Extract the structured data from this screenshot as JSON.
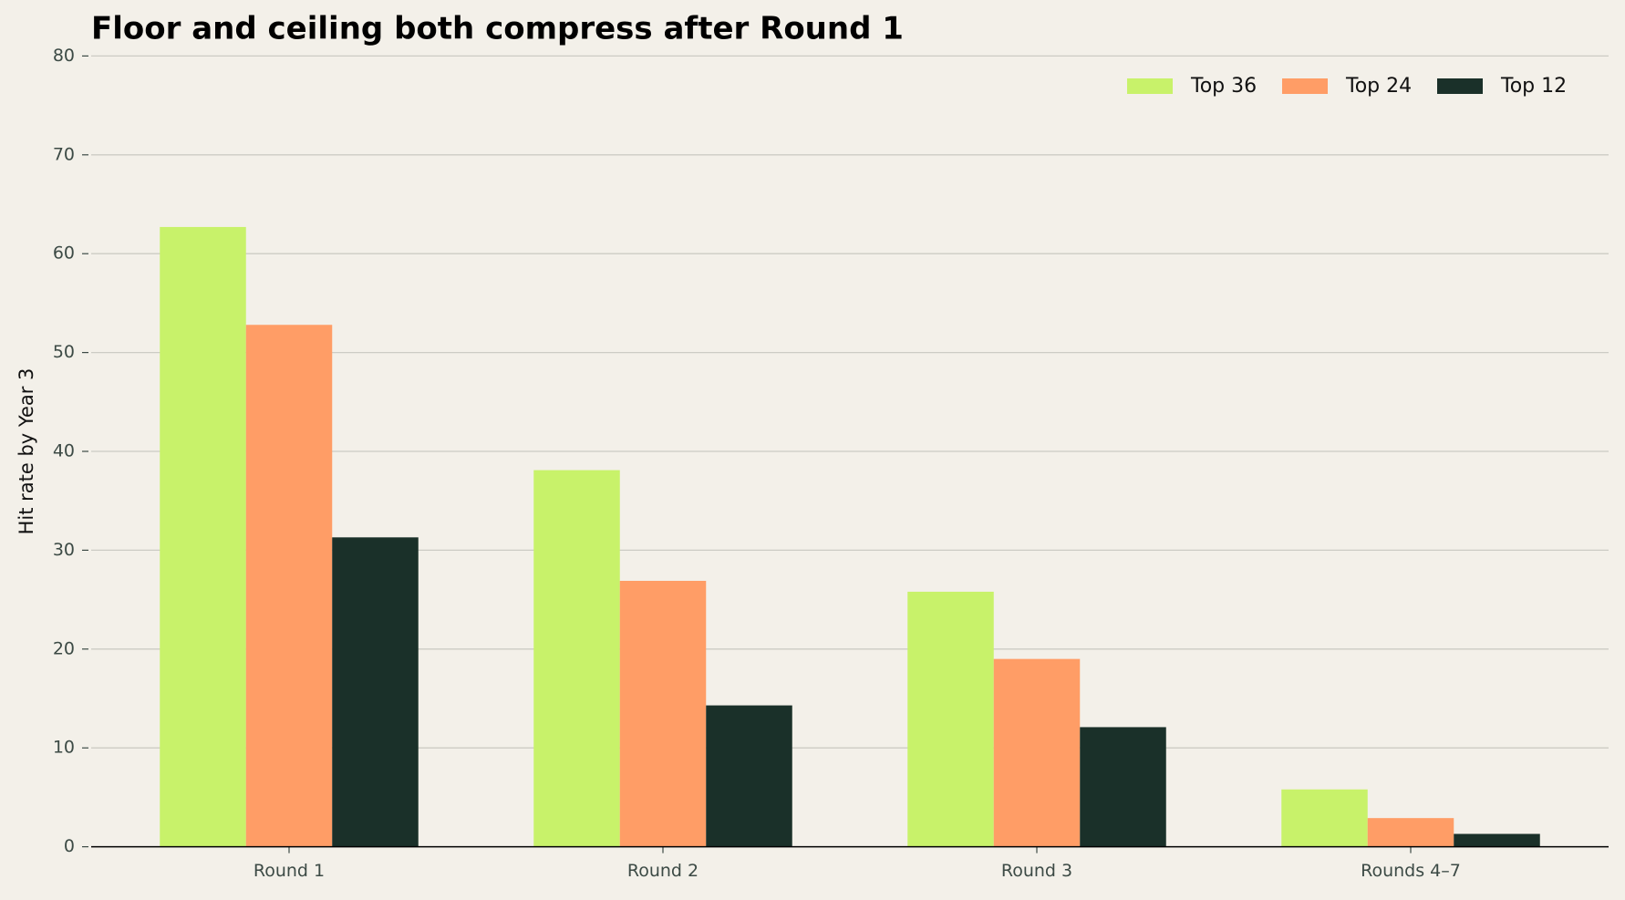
{
  "chart_data": {
    "type": "bar",
    "title": "Floor and ceiling both compress after Round 1",
    "y_label": "Hit rate by Year 3",
    "categories": [
      "Round 1",
      "Round 2",
      "Round 3",
      "Rounds 4–7"
    ],
    "series": [
      {
        "name": "Top 36",
        "color": "#c8f26a",
        "values": [
          62.7,
          38.1,
          25.8,
          5.8
        ]
      },
      {
        "name": "Top 24",
        "color": "#ff9d66",
        "values": [
          52.8,
          26.9,
          19.0,
          2.9
        ]
      },
      {
        "name": "Top 12",
        "color": "#1a3029",
        "values": [
          31.3,
          14.3,
          12.1,
          1.3
        ]
      }
    ],
    "ylim": [
      0,
      80
    ],
    "yticks": [
      0,
      10,
      20,
      30,
      40,
      50,
      60,
      70,
      80
    ],
    "grid": true,
    "legend": "upper right"
  }
}
